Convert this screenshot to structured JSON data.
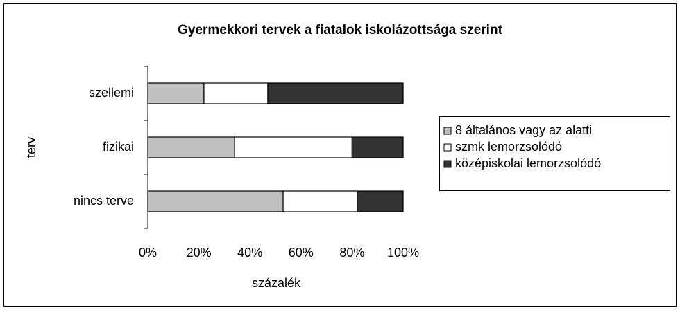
{
  "chart_data": {
    "type": "stacked_barh",
    "title": "Gyermekkori tervek a fiatalok iskolázottsága szerint",
    "x_label": "százalék",
    "y_label": "terv",
    "categories": [
      "nincs terve",
      "fizikai",
      "szellemi"
    ],
    "series": [
      {
        "name": "8 általános vagy az alatti",
        "color": "#c0c0c0",
        "values": [
          53,
          34,
          22
        ]
      },
      {
        "name": "szmk lemorzsolódó",
        "color": "#ffffff",
        "values": [
          29,
          46,
          25
        ]
      },
      {
        "name": "középiskolai lemorzsolódó",
        "color": "#333333",
        "values": [
          18,
          20,
          53
        ]
      }
    ],
    "xlim": [
      0,
      100
    ],
    "xticks": [
      {
        "value": 0,
        "label": "0%"
      },
      {
        "value": 20,
        "label": "20%"
      },
      {
        "value": 40,
        "label": "40%"
      },
      {
        "value": 60,
        "label": "60%"
      },
      {
        "value": 80,
        "label": "80%"
      },
      {
        "value": 100,
        "label": "100%"
      }
    ],
    "legend": "right",
    "grid": false
  }
}
